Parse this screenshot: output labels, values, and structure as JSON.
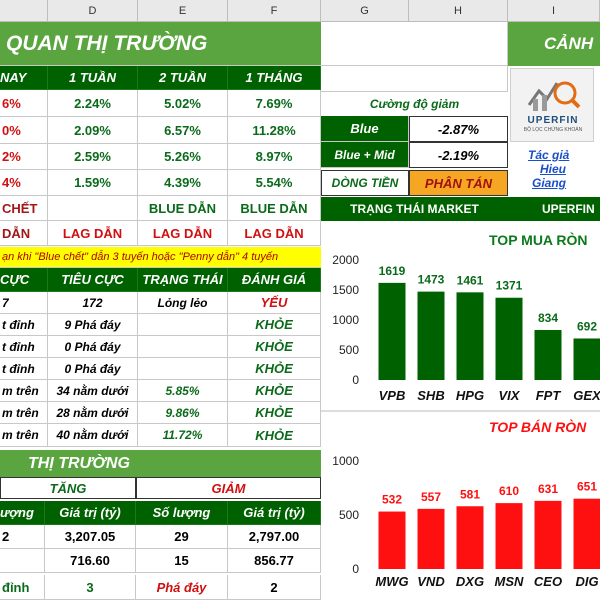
{
  "columns": [
    "D",
    "E",
    "F",
    "G",
    "H",
    "I"
  ],
  "title": "QUAN THỊ TRƯỜNG",
  "title_right": "CẢNH",
  "period_headers": [
    "NAY",
    "1 TUẦN",
    "2 TUẦN",
    "1 THÁNG"
  ],
  "period_rows": [
    [
      "6%",
      "2.24%",
      "5.02%",
      "7.69%"
    ],
    [
      "0%",
      "2.09%",
      "6.57%",
      "11.28%"
    ],
    [
      "2%",
      "2.59%",
      "5.26%",
      "8.97%"
    ],
    [
      "4%",
      "1.59%",
      "4.39%",
      "5.54%"
    ]
  ],
  "status_rows": [
    [
      "CHẾT",
      "",
      "BLUE DẪN",
      "BLUE DẪN"
    ],
    [
      "DẪN",
      "LAG DẪN",
      "LAG DẪN",
      "LAG DẪN"
    ]
  ],
  "note": "ạn khi \"Blue chết\" dẫn 3 tuyến hoặc \"Penny dẫn\" 4 tuyến",
  "eval_headers": [
    "CỰC",
    "TIÊU CỰC",
    "TRẠNG THÁI",
    "ĐÁNH GIÁ"
  ],
  "eval_rows": [
    [
      "7",
      "172",
      "Lỏng lẻo",
      "YẾU"
    ],
    [
      "t đỉnh",
      "9 Phá đáy",
      "",
      "KHỎE"
    ],
    [
      "t đỉnh",
      "0 Phá đáy",
      "",
      "KHỎE"
    ],
    [
      "t đỉnh",
      "0 Phá đáy",
      "",
      "KHỎE"
    ],
    [
      "m trên",
      "34 nằm dưới",
      "5.85%",
      "KHỎE"
    ],
    [
      "m trên",
      "28 nằm dưới",
      "9.86%",
      "KHỎE"
    ],
    [
      "m trên",
      "40 nằm dưới",
      "11.72%",
      "KHỎE"
    ]
  ],
  "market_title": "THỊ TRƯỜNG",
  "market_up": "TĂNG",
  "market_down": "GIẢM",
  "market_sub": [
    "ượng",
    "Giá trị (tỷ)",
    "Số lượng",
    "Giá trị (tỷ)"
  ],
  "market_rows": [
    [
      "2",
      "3,207.05",
      "29",
      "2,797.00"
    ],
    [
      "",
      "716.60",
      "15",
      "856.77"
    ]
  ],
  "market_bottom": [
    "đỉnh",
    "3",
    "Phá đáy",
    "2"
  ],
  "strength_label": "Cường độ giảm",
  "strength_rows": [
    {
      "label": "Blue",
      "value": "-2.87%"
    },
    {
      "label": "Blue + Mid",
      "value": "-2.19%"
    }
  ],
  "cashflow_label": "DÒNG TIỀN",
  "cashflow_value": "PHÂN TÁN",
  "market_state_label": "TRẠNG THÁI MARKET",
  "market_state_right": "UPERFIN",
  "logo_text": "UPERFIN",
  "logo_sub": "BỘ LỌC CHỨNG KHOÁN",
  "author_label": "Tác giả",
  "author_name_1": "Hieu",
  "author_name_2": "Giang",
  "colors": {
    "dark_green": "#006100",
    "light_green": "#5aa53f",
    "red": "#ff1010",
    "orange": "#f5a623"
  },
  "chart_data": [
    {
      "type": "bar",
      "title": "TOP MUA RÒN",
      "categories": [
        "VPB",
        "SHB",
        "HPG",
        "VIX",
        "FPT",
        "GEX"
      ],
      "values": [
        1619,
        1473,
        1461,
        1371,
        834,
        692
      ],
      "data_labels": [
        "1619",
        "1473",
        "1461",
        "1371",
        "834",
        "692"
      ],
      "y_ticks": [
        "2000",
        "1500",
        "1000",
        "500",
        "0"
      ],
      "ylim": [
        0,
        2000
      ],
      "color": "#006100"
    },
    {
      "type": "bar",
      "title": "TOP BÁN RÒN",
      "categories": [
        "MWG",
        "VND",
        "DXG",
        "MSN",
        "CEO",
        "DIG"
      ],
      "values": [
        532,
        557,
        581,
        610,
        631,
        651
      ],
      "data_labels": [
        "532",
        "557",
        "581",
        "610",
        "631",
        "651"
      ],
      "y_ticks": [
        "1000",
        "500",
        "0"
      ],
      "ylim": [
        0,
        1000
      ],
      "color": "#ff1010"
    }
  ]
}
